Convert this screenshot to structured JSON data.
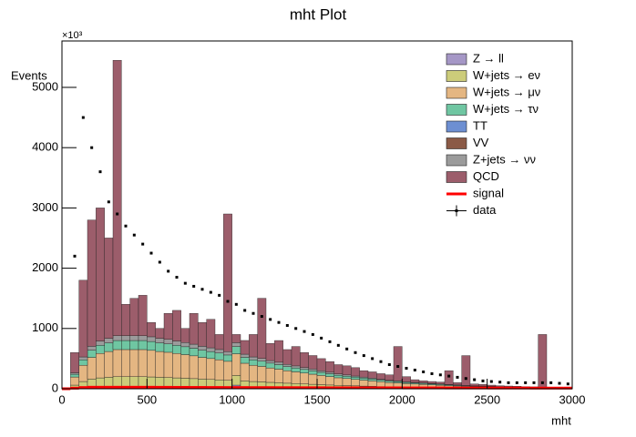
{
  "chart_data": {
    "type": "stacked-histogram",
    "title": "mht Plot",
    "x_label": "mht",
    "y_label": "Events",
    "y_multiplier": "×10³",
    "xlim": [
      0,
      3000
    ],
    "ylim": [
      0,
      5770
    ],
    "xticks": [
      0,
      500,
      1000,
      1500,
      2000,
      2500,
      3000
    ],
    "yticks": [
      0,
      1000,
      2000,
      3000,
      4000,
      5000
    ],
    "bins": [
      0,
      50,
      100,
      150,
      200,
      250,
      300,
      350,
      400,
      450,
      500,
      550,
      600,
      650,
      700,
      750,
      800,
      850,
      900,
      950,
      1000,
      1050,
      1100,
      1150,
      1200,
      1250,
      1300,
      1350,
      1400,
      1450,
      1500,
      1550,
      1600,
      1650,
      1700,
      1750,
      1800,
      1850,
      1900,
      1950,
      2000,
      2050,
      2100,
      2150,
      2200,
      2250,
      2300,
      2350,
      2400,
      2450,
      2500,
      2550,
      2600,
      2650,
      2700,
      2750,
      2800,
      2850,
      2900,
      2950,
      3000
    ],
    "series": [
      {
        "name": "Z → ll",
        "color": "#a597c6",
        "values": [
          0,
          0,
          0,
          0,
          0,
          0,
          0,
          0,
          0,
          0,
          0,
          0,
          0,
          0,
          0,
          0,
          0,
          0,
          0,
          0,
          60,
          0,
          0,
          0,
          0,
          0,
          0,
          0,
          0,
          0,
          0,
          0,
          0,
          0,
          0,
          0,
          0,
          0,
          0,
          0,
          0,
          0,
          0,
          0,
          0,
          0,
          0,
          0,
          0,
          0,
          0,
          0,
          0,
          0,
          0,
          0,
          0,
          0,
          0,
          0
        ]
      },
      {
        "name": "W+jets → eν",
        "color": "#cccc7a",
        "values": [
          0,
          60,
          120,
          160,
          180,
          190,
          200,
          200,
          200,
          200,
          196,
          190,
          186,
          180,
          174,
          168,
          160,
          154,
          148,
          140,
          160,
          130,
          120,
          114,
          106,
          100,
          92,
          86,
          80,
          74,
          68,
          62,
          56,
          52,
          48,
          44,
          40,
          36,
          32,
          30,
          26,
          24,
          22,
          20,
          18,
          16,
          14,
          12,
          11,
          10,
          9,
          8,
          7,
          6,
          5,
          5,
          4,
          4,
          3,
          3
        ]
      },
      {
        "name": "W+jets → μν",
        "color": "#e4b682",
        "values": [
          0,
          135,
          270,
          360,
          405,
          428,
          450,
          450,
          450,
          450,
          441,
          428,
          419,
          405,
          392,
          378,
          360,
          347,
          333,
          315,
          360,
          293,
          270,
          257,
          239,
          225,
          207,
          194,
          180,
          167,
          153,
          140,
          126,
          117,
          108,
          99,
          90,
          81,
          72,
          68,
          59,
          54,
          50,
          45,
          41,
          36,
          32,
          27,
          25,
          23,
          20,
          18,
          16,
          14,
          12,
          11,
          9,
          8,
          7,
          6
        ]
      },
      {
        "name": "W+jets → τν",
        "color": "#6fc6a2",
        "values": [
          0,
          45,
          90,
          120,
          135,
          143,
          150,
          150,
          150,
          150,
          147,
          143,
          140,
          135,
          131,
          126,
          120,
          116,
          111,
          105,
          120,
          98,
          90,
          86,
          80,
          75,
          69,
          65,
          60,
          56,
          51,
          47,
          42,
          39,
          36,
          33,
          30,
          27,
          24,
          23,
          20,
          18,
          17,
          15,
          14,
          12,
          11,
          9,
          8,
          8,
          7,
          6,
          5,
          5,
          4,
          4,
          3,
          3,
          2,
          2
        ]
      },
      {
        "name": "TT",
        "color": "#6d8fd2",
        "values": [
          0,
          0,
          0,
          0,
          0,
          0,
          0,
          0,
          0,
          0,
          0,
          0,
          0,
          0,
          0,
          0,
          0,
          0,
          0,
          0,
          0,
          0,
          0,
          0,
          0,
          0,
          0,
          0,
          0,
          0,
          0,
          0,
          0,
          0,
          0,
          0,
          0,
          0,
          0,
          0,
          0,
          0,
          0,
          0,
          0,
          0,
          0,
          0,
          0,
          0,
          0,
          0,
          0,
          0,
          0,
          0,
          0,
          0,
          0,
          0
        ]
      },
      {
        "name": "VV",
        "color": "#8b5a46",
        "values": [
          0,
          0,
          0,
          0,
          0,
          0,
          0,
          0,
          0,
          0,
          0,
          0,
          0,
          0,
          0,
          0,
          0,
          0,
          0,
          0,
          0,
          0,
          0,
          0,
          0,
          0,
          0,
          0,
          0,
          0,
          0,
          0,
          0,
          0,
          0,
          0,
          0,
          0,
          0,
          0,
          0,
          0,
          0,
          0,
          0,
          0,
          0,
          0,
          0,
          0,
          0,
          0,
          0,
          0,
          0,
          0,
          0,
          0,
          0,
          0
        ]
      },
      {
        "name": "Z+jets → νν",
        "color": "#9b9b9b",
        "values": [
          0,
          24,
          48,
          64,
          72,
          76,
          80,
          80,
          80,
          80,
          78,
          76,
          74,
          72,
          70,
          67,
          64,
          62,
          59,
          56,
          64,
          52,
          48,
          46,
          42,
          40,
          37,
          34,
          32,
          30,
          27,
          25,
          22,
          21,
          19,
          18,
          16,
          14,
          13,
          12,
          10,
          10,
          9,
          8,
          7,
          6,
          6,
          5,
          4,
          4,
          4,
          3,
          3,
          2,
          2,
          2,
          2,
          1,
          1,
          1
        ]
      },
      {
        "name": "QCD",
        "color": "#9c5d6b",
        "values": [
          0,
          336,
          1272,
          2096,
          2208,
          1664,
          4570,
          520,
          620,
          670,
          238,
          164,
          432,
          508,
          234,
          511,
          396,
          472,
          249,
          2284,
          136,
          228,
          372,
          998,
          284,
          360,
          245,
          322,
          248,
          224,
          201,
          177,
          154,
          151,
          139,
          106,
          104,
          92,
          89,
          568,
          86,
          44,
          33,
          32,
          31,
          230,
          38,
          497,
          32,
          26,
          20,
          15,
          14,
          14,
          11,
          9,
          882,
          9,
          6,
          3
        ]
      }
    ],
    "signal": {
      "name": "signal",
      "color": "#ff0000",
      "values": [
        0,
        10,
        20,
        25,
        25,
        25,
        25,
        25,
        25,
        25,
        25,
        24,
        24,
        23,
        23,
        22,
        22,
        21,
        21,
        20,
        20,
        20,
        19,
        19,
        19,
        18,
        18,
        18,
        17,
        17,
        17,
        16,
        16,
        16,
        16,
        15,
        15,
        15,
        15,
        15,
        14,
        14,
        14,
        14,
        14,
        13,
        13,
        13,
        13,
        13,
        12,
        12,
        12,
        12,
        12,
        11,
        11,
        11,
        11,
        11
      ]
    },
    "data": {
      "name": "data",
      "color": "#000000",
      "values": [
        null,
        2200,
        4500,
        4000,
        3600,
        3100,
        2900,
        2700,
        2550,
        2400,
        2250,
        2100,
        1950,
        1850,
        1750,
        1700,
        1650,
        1600,
        1550,
        1450,
        1400,
        1300,
        1250,
        1200,
        1150,
        1100,
        1050,
        1000,
        950,
        900,
        840,
        780,
        720,
        660,
        600,
        550,
        500,
        450,
        400,
        370,
        340,
        310,
        280,
        250,
        230,
        210,
        190,
        170,
        150,
        130,
        120,
        110,
        100,
        100,
        100,
        100,
        100,
        100,
        90,
        80
      ]
    }
  }
}
